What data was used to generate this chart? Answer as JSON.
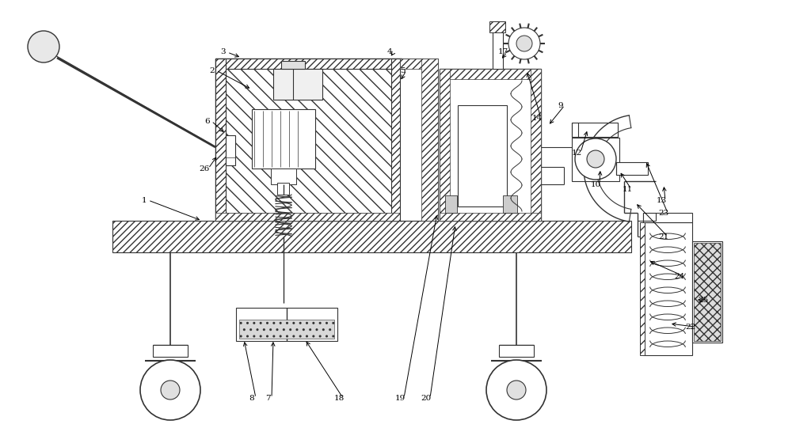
{
  "bg_color": "#ffffff",
  "line_color": "#333333",
  "fig_width": 10.0,
  "fig_height": 5.41,
  "dpi": 100,
  "label_fontsize": 7.5,
  "label_specs": [
    [
      "1",
      1.82,
      2.88,
      2.55,
      2.62
    ],
    [
      "2",
      2.68,
      4.52,
      3.18,
      4.28
    ],
    [
      "3",
      2.82,
      4.75,
      3.05,
      4.68
    ],
    [
      "4",
      4.92,
      4.75,
      4.92,
      4.68
    ],
    [
      "5",
      5.08,
      4.52,
      5.05,
      4.38
    ],
    [
      "6",
      2.62,
      3.88,
      2.85,
      3.72
    ],
    [
      "7",
      3.38,
      0.38,
      3.45,
      1.12
    ],
    [
      "8",
      3.18,
      0.38,
      3.08,
      1.12
    ],
    [
      "9",
      7.08,
      4.08,
      6.92,
      3.82
    ],
    [
      "10",
      7.52,
      3.08,
      7.58,
      3.28
    ],
    [
      "11",
      7.92,
      3.02,
      7.82,
      3.25
    ],
    [
      "12",
      7.28,
      3.48,
      7.42,
      3.78
    ],
    [
      "13",
      8.35,
      2.88,
      8.38,
      3.08
    ],
    [
      "14",
      6.78,
      3.92,
      6.65,
      4.52
    ],
    [
      "17",
      6.35,
      4.75,
      6.32,
      4.65
    ],
    [
      "18",
      4.28,
      0.38,
      3.85,
      1.12
    ],
    [
      "19",
      5.05,
      0.38,
      5.52,
      2.72
    ],
    [
      "20",
      5.38,
      0.38,
      5.75,
      2.58
    ],
    [
      "21",
      8.38,
      2.42,
      8.02,
      2.85
    ],
    [
      "22",
      8.72,
      1.28,
      8.45,
      1.32
    ],
    [
      "23",
      8.38,
      2.72,
      8.15,
      3.38
    ],
    [
      "24",
      8.58,
      1.92,
      8.18,
      2.12
    ],
    [
      "25",
      8.88,
      1.62,
      8.78,
      1.62
    ],
    [
      "26",
      2.58,
      3.28,
      2.75,
      3.45
    ]
  ]
}
